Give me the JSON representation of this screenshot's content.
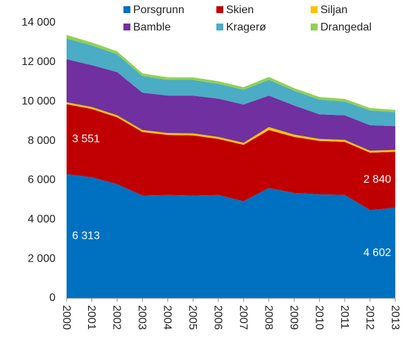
{
  "chart_data": {
    "type": "stacked_area",
    "categories": [
      "2000",
      "2001",
      "2002",
      "2003",
      "2004",
      "2005",
      "2006",
      "2007",
      "2008",
      "2009",
      "2010",
      "2011",
      "2012",
      "2013"
    ],
    "series": [
      {
        "name": "Porsgrunn",
        "color": "#0070c0",
        "values": [
          6313,
          6150,
          5800,
          5220,
          5250,
          5220,
          5250,
          4930,
          5600,
          5350,
          5280,
          5250,
          4480,
          4602
        ],
        "value_labels": [
          "6 313",
          null,
          null,
          null,
          null,
          null,
          null,
          null,
          null,
          null,
          null,
          null,
          null,
          "4 602"
        ]
      },
      {
        "name": "Skien",
        "color": "#c00000",
        "values": [
          3551,
          3470,
          3400,
          3230,
          3050,
          3060,
          2850,
          2870,
          2950,
          2850,
          2720,
          2700,
          2920,
          2840
        ],
        "value_labels": [
          "3 551",
          null,
          null,
          null,
          null,
          null,
          null,
          null,
          null,
          null,
          null,
          null,
          null,
          "2 840"
        ]
      },
      {
        "name": "Siljan",
        "color": "#ffc000",
        "values": [
          100,
          100,
          100,
          100,
          100,
          100,
          100,
          100,
          150,
          120,
          100,
          100,
          100,
          100
        ]
      },
      {
        "name": "Bamble",
        "color": "#7030a0",
        "values": [
          2190,
          2130,
          2200,
          1900,
          1900,
          1920,
          1950,
          1950,
          1600,
          1480,
          1250,
          1250,
          1300,
          1210
        ]
      },
      {
        "name": "Kragerø",
        "color": "#4bacc6",
        "values": [
          1050,
          1000,
          900,
          850,
          800,
          800,
          750,
          750,
          800,
          750,
          750,
          700,
          750,
          700
        ]
      },
      {
        "name": "Drangedal",
        "color": "#92d050",
        "values": [
          180,
          150,
          150,
          130,
          130,
          130,
          130,
          130,
          150,
          130,
          130,
          130,
          120,
          120
        ]
      }
    ],
    "ylim": [
      0,
      14000
    ],
    "yticks": [
      0,
      {
        "value": 2000,
        "label": "2 000"
      },
      {
        "value": 4000,
        "label": "4 000"
      },
      {
        "value": 6000,
        "label": "6 000"
      },
      {
        "value": 8000,
        "label": "8 000"
      },
      {
        "value": 10000,
        "label": "10 000"
      },
      {
        "value": 12000,
        "label": "12 000"
      },
      {
        "value": 14000,
        "label": "14 000"
      }
    ],
    "legend": "top",
    "grid": false
  }
}
